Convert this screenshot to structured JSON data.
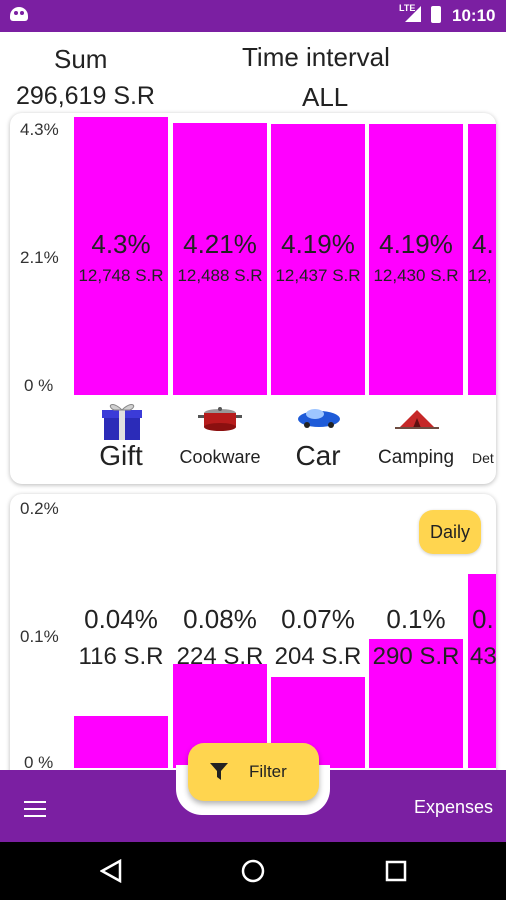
{
  "status_bar": {
    "network": "LTE",
    "time": "10:10"
  },
  "header": {
    "sum_label": "Sum",
    "sum_value": "296,619 S.R",
    "interval_label": "Time interval",
    "interval_value": "ALL"
  },
  "category_chart": {
    "y_ticks": [
      "4.3%",
      "2.1%",
      "0 %"
    ],
    "bars": [
      {
        "percent": "4.3%",
        "amount": "12,748 S.R",
        "label": "Gift",
        "icon": "gift-icon"
      },
      {
        "percent": "4.21%",
        "amount": "12,488 S.R",
        "label": "Cookware",
        "icon": "cookware-pot-icon"
      },
      {
        "percent": "4.19%",
        "amount": "12,437 S.R",
        "label": "Car",
        "icon": "car-icon"
      },
      {
        "percent": "4.19%",
        "amount": "12,430 S.R",
        "label": "Camping",
        "icon": "camping-tent-icon"
      },
      {
        "percent": "4.",
        "amount": "12,",
        "label": "Det",
        "icon": "partial-icon"
      }
    ],
    "values": [
      4.3,
      4.21,
      4.19,
      4.19,
      4.19
    ],
    "y_max": 4.3
  },
  "daily_chart": {
    "y_ticks": [
      "0.2%",
      "0.1%",
      "0 %"
    ],
    "toggle_label": "Daily",
    "bars": [
      {
        "percent": "0.04%",
        "amount": "116 S.R"
      },
      {
        "percent": "0.08%",
        "amount": "224 S.R"
      },
      {
        "percent": "0.07%",
        "amount": "204 S.R"
      },
      {
        "percent": "0.1%",
        "amount": "290 S.R"
      },
      {
        "percent": "0.",
        "amount": "43"
      }
    ],
    "values": [
      0.04,
      0.08,
      0.07,
      0.1,
      0.15
    ],
    "y_max": 0.2
  },
  "bottom_bar": {
    "filter_label": "Filter",
    "expenses_label": "Expenses"
  },
  "colors": {
    "primary": "#7b1fa2",
    "bar": "#ff00ff",
    "accent": "#ffd54f"
  }
}
